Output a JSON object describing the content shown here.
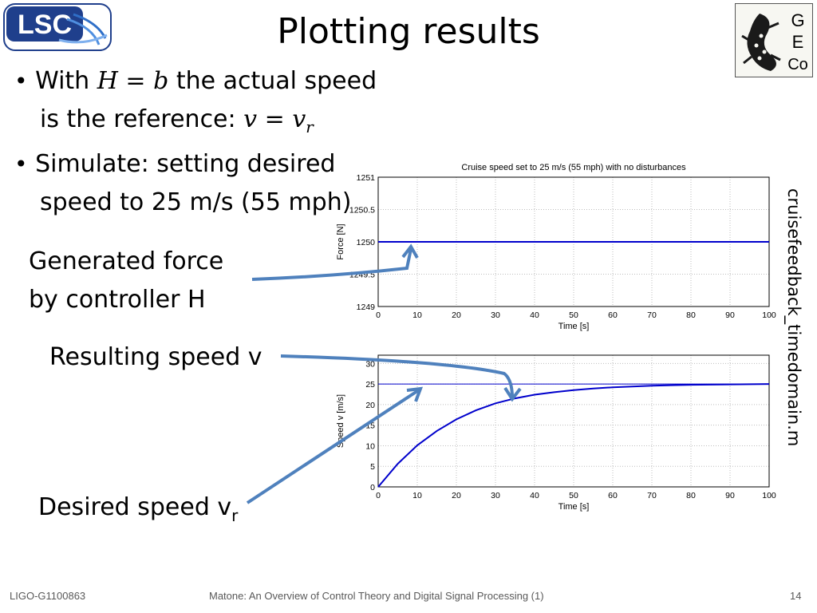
{
  "slide": {
    "title": "Plotting results",
    "bullets": [
      {
        "prefix": "With ",
        "math": "H = b",
        "suffix": " the actual speed",
        "line2_text": "is the reference:  ",
        "line2_math": "v = v",
        "line2_sub": "r"
      },
      {
        "line1": "Simulate: setting desired",
        "line2": "speed to 25 m/s (55 mph)"
      }
    ],
    "annotations": {
      "force_line1": "Generated force",
      "force_line2": "by controller H",
      "speed": "Resulting speed v",
      "desired": "Desired speed v",
      "desired_sub": "r"
    },
    "side_label": "cruisefeedback_timedomain.m",
    "footer": {
      "left": "LIGO-G1100863",
      "center": "Matone: An Overview of Control Theory and Digital Signal Processing (1)",
      "right": "14"
    },
    "logos": {
      "lsc_text": "LSC",
      "geco_letters": [
        "G",
        "E",
        "Co"
      ]
    },
    "colors": {
      "series": "#0000cc",
      "arrow": "#4f81bd",
      "grid": "#bdbdbd",
      "lsc_blue": "#1f3f8c"
    }
  },
  "chart_data": [
    {
      "type": "line",
      "title": "Cruise speed set to 25 m/s (55 mph) with no disturbances",
      "xlabel": "Time [s]",
      "ylabel": "Force [N]",
      "xlim": [
        0,
        100
      ],
      "ylim": [
        1249,
        1251
      ],
      "xticks": [
        0,
        10,
        20,
        30,
        40,
        50,
        60,
        70,
        80,
        90,
        100
      ],
      "yticks": [
        1249,
        1249.5,
        1250,
        1250.5,
        1251
      ],
      "ytick_labels": [
        "1249",
        "1249.5",
        "1250",
        "1250.5",
        "1251"
      ],
      "grid": true,
      "series": [
        {
          "x": [
            0,
            100
          ],
          "y": [
            1250,
            1250
          ]
        }
      ]
    },
    {
      "type": "line",
      "title": "",
      "xlabel": "Time [s]",
      "ylabel": "Speed v [m/s]",
      "xlim": [
        0,
        100
      ],
      "ylim": [
        0,
        32
      ],
      "xticks": [
        0,
        10,
        20,
        30,
        40,
        50,
        60,
        70,
        80,
        90,
        100
      ],
      "yticks": [
        0,
        5,
        10,
        15,
        20,
        25,
        30
      ],
      "ytick_labels": [
        "0",
        "5",
        "10",
        "15",
        "20",
        "25",
        "30"
      ],
      "grid": true,
      "series": [
        {
          "x": [
            0,
            5,
            10,
            15,
            20,
            25,
            30,
            35,
            40,
            45,
            50,
            55,
            60,
            65,
            70,
            75,
            80,
            85,
            90,
            95,
            100
          ],
          "y": [
            0,
            5.6,
            10.1,
            13.6,
            16.4,
            18.6,
            20.3,
            21.5,
            22.4,
            23.0,
            23.5,
            23.9,
            24.2,
            24.4,
            24.6,
            24.7,
            24.8,
            24.85,
            24.9,
            24.95,
            25.0
          ]
        },
        {
          "x": [
            0,
            100
          ],
          "y": [
            25,
            25
          ]
        }
      ]
    }
  ]
}
